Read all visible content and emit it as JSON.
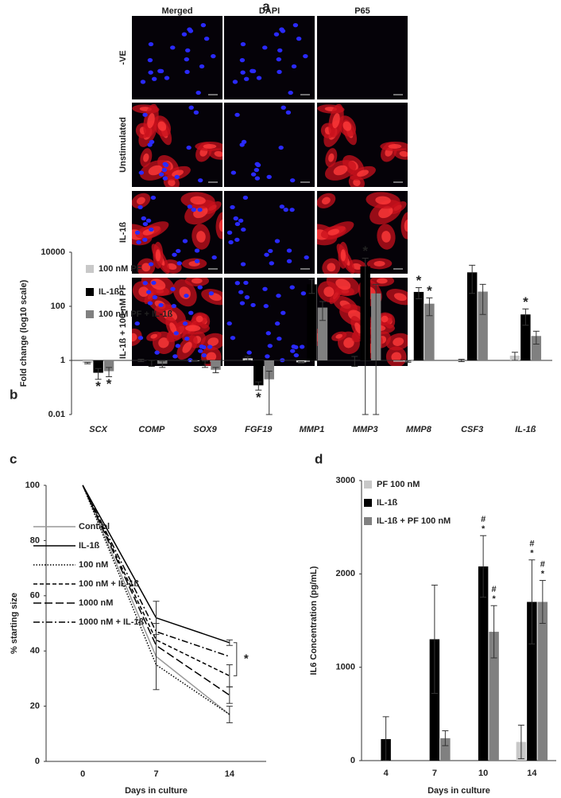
{
  "panel_a": {
    "label": "a",
    "columns": [
      "Merged",
      "DAPI",
      "P65"
    ],
    "rows": [
      "-VE",
      "Unstimulated",
      "IL-1ß",
      "IL-1ß + 100 nM PF"
    ]
  },
  "chart_data": [
    {
      "type": "bar",
      "panel": "b",
      "ylabel": "Fold change (log10 scale)",
      "yscale": "log",
      "categories": [
        "SCX",
        "COMP",
        "SOX9",
        "FGF19",
        "MMP1",
        "MMP3",
        "MMP8",
        "CSF3",
        "IL-1ß"
      ],
      "ylim": [
        0.01,
        10000
      ],
      "yticks": [
        0.01,
        1,
        100,
        10000
      ],
      "series": [
        {
          "name": "100 nM PF",
          "color": "#c8c8c8",
          "values": [
            0.8,
            1.0,
            0.95,
            1.2,
            0.85,
            1.0,
            0.9,
            1.0,
            1.5
          ],
          "errors": [
            0.05,
            0.1,
            0.03,
            0.2,
            0.05,
            0.4,
            0.05,
            0.1,
            0.5
          ],
          "annotations": [
            null,
            null,
            null,
            null,
            null,
            null,
            null,
            null,
            null
          ]
        },
        {
          "name": "IL-1ß",
          "color": "#000000",
          "values": [
            0.35,
            0.8,
            0.75,
            0.12,
            650,
            3000,
            340,
            1800,
            50
          ],
          "errors": [
            0.15,
            0.2,
            0.2,
            0.04,
            350,
            3000,
            150,
            1500,
            30
          ],
          "annotations": [
            "*",
            null,
            null,
            "*",
            null,
            "*",
            "*",
            null,
            "*"
          ]
        },
        {
          "name": "100 nM PF + IL-1ß",
          "color": "#808080",
          "values": [
            0.4,
            0.75,
            0.45,
            0.2,
            90,
            300,
            125,
            350,
            8
          ],
          "errors": [
            0.15,
            0.2,
            0.1,
            0.2,
            60,
            350,
            80,
            300,
            4
          ],
          "annotations": [
            "*",
            null,
            null,
            null,
            null,
            null,
            "*",
            null,
            null
          ]
        }
      ]
    },
    {
      "type": "line",
      "panel": "c",
      "xlabel": "Days in culture",
      "ylabel": "% starting size",
      "categories": [
        "0",
        "7",
        "14"
      ],
      "ylim": [
        0,
        100
      ],
      "yticks": [
        0,
        20,
        40,
        60,
        80,
        100
      ],
      "annotation": "*",
      "series": [
        {
          "name": "Control",
          "color": "#999999",
          "dash": "solid",
          "values": [
            100,
            38,
            17
          ],
          "errors": [
            null,
            12,
            3
          ]
        },
        {
          "name": "IL-1ß",
          "color": "#000000",
          "dash": "solid",
          "values": [
            100,
            52,
            43
          ],
          "errors": [
            null,
            6,
            1
          ]
        },
        {
          "name": "100 nM",
          "color": "#000000",
          "dash": "dotted",
          "values": [
            100,
            35,
            17
          ],
          "errors": [
            null,
            null,
            null
          ]
        },
        {
          "name": "100 nM + IL-1ß",
          "color": "#000000",
          "dash": "dashed",
          "values": [
            100,
            44,
            31
          ],
          "errors": [
            null,
            null,
            4
          ]
        },
        {
          "name": "1000 nM",
          "color": "#000000",
          "dash": "longdash",
          "values": [
            100,
            42,
            24
          ],
          "errors": [
            null,
            null,
            3
          ]
        },
        {
          "name": "1000 nM + IL-1ß",
          "color": "#000000",
          "dash": "dashdot",
          "values": [
            100,
            47,
            38
          ],
          "errors": [
            null,
            null,
            null
          ]
        }
      ]
    },
    {
      "type": "bar",
      "panel": "d",
      "xlabel": "Days in culture",
      "ylabel": "IL6 Concentration (pg/mL)",
      "yscale": "linear",
      "categories": [
        "4",
        "7",
        "10",
        "14"
      ],
      "ylim": [
        0,
        3000
      ],
      "yticks": [
        0,
        1000,
        2000,
        3000
      ],
      "series": [
        {
          "name": "PF 100 nM",
          "color": "#c8c8c8",
          "values": [
            0,
            0,
            0,
            200
          ],
          "errors": [
            0,
            0,
            0,
            180
          ],
          "annotations": [
            null,
            null,
            null,
            null
          ]
        },
        {
          "name": "IL-1ß",
          "color": "#000000",
          "values": [
            230,
            1300,
            2080,
            1700
          ],
          "errors": [
            240,
            580,
            330,
            450
          ],
          "annotations": [
            null,
            null,
            [
              "#",
              "*"
            ],
            [
              "#",
              "*"
            ]
          ]
        },
        {
          "name": "IL-1ß + PF 100 nM",
          "color": "#808080",
          "values": [
            0,
            240,
            1380,
            1700
          ],
          "errors": [
            0,
            80,
            280,
            230
          ],
          "annotations": [
            null,
            null,
            [
              "#",
              "*"
            ],
            [
              "#",
              "*"
            ]
          ]
        }
      ]
    }
  ]
}
